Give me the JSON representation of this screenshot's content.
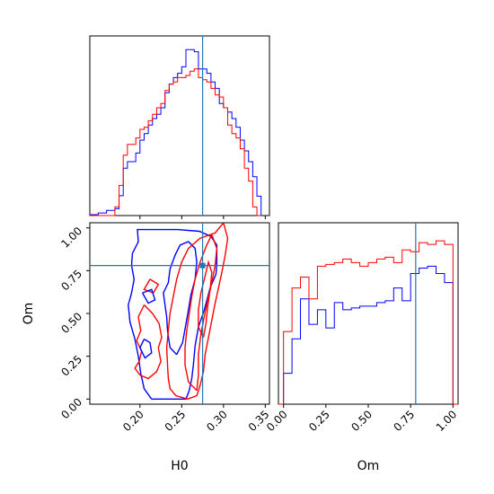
{
  "chart_data": {
    "type": "corner",
    "parameters": [
      "H0",
      "Om"
    ],
    "truth": {
      "H0": 0.275,
      "Om": 0.78
    },
    "colors": {
      "series_a": "#0000ff",
      "series_b": "#ff0000",
      "truth": "#1f77b4"
    },
    "panels": [
      {
        "id": "hist-h0",
        "type": "histogram",
        "xlim": [
          0.14,
          0.355
        ],
        "x_ticks": [
          0.2,
          0.25,
          0.3,
          0.35
        ],
        "tick_labels_shown": false,
        "bin_edges": [
          0.14,
          0.15,
          0.16,
          0.17,
          0.175,
          0.18,
          0.185,
          0.19,
          0.195,
          0.2,
          0.205,
          0.21,
          0.215,
          0.22,
          0.225,
          0.23,
          0.235,
          0.24,
          0.245,
          0.25,
          0.255,
          0.26,
          0.265,
          0.27,
          0.275,
          0.28,
          0.285,
          0.29,
          0.295,
          0.3,
          0.305,
          0.31,
          0.315,
          0.32,
          0.325,
          0.33,
          0.335,
          0.34,
          0.345
        ],
        "series": [
          {
            "color": "blue",
            "counts": [
              0.2,
              0.6,
              1.2,
              1.6,
              4.6,
              11.0,
              12.5,
              12.5,
              14.5,
              17.5,
              19.0,
              21.0,
              22.5,
              23.5,
              25.0,
              28.5,
              30.5,
              32.0,
              33.0,
              34.5,
              38.5,
              38.5,
              38.0,
              34.0,
              34.0,
              33.0,
              31.0,
              29.5,
              26.0,
              25.0,
              24.0,
              22.5,
              20.5,
              17.5,
              15.0,
              12.5,
              9.0,
              4.5
            ]
          },
          {
            "color": "red",
            "counts": [
              0.0,
              0.0,
              0.0,
              2.0,
              7.0,
              14.0,
              16.5,
              16.5,
              18.0,
              20.0,
              20.5,
              22.0,
              23.5,
              25.0,
              26.0,
              29.0,
              30.5,
              31.0,
              32.0,
              32.0,
              32.5,
              33.5,
              34.0,
              32.0,
              31.5,
              31.0,
              29.5,
              28.0,
              27.5,
              25.0,
              21.0,
              19.0,
              18.0,
              15.5,
              11.0,
              8.0,
              2.0,
              0.0
            ]
          }
        ]
      },
      {
        "id": "hist-om",
        "type": "histogram",
        "xlim": [
          -0.03,
          1.03
        ],
        "x_ticks": [
          0.0,
          0.25,
          0.5,
          0.75,
          1.0
        ],
        "tick_labels": [
          "0.00",
          "0.25",
          "0.50",
          "0.75",
          "1.00"
        ],
        "xlabel": "Om",
        "bin_edges": [
          -0.03,
          0.0,
          0.05,
          0.1,
          0.15,
          0.2,
          0.25,
          0.3,
          0.35,
          0.4,
          0.45,
          0.5,
          0.55,
          0.6,
          0.65,
          0.7,
          0.75,
          0.8,
          0.85,
          0.9,
          0.95,
          1.0,
          1.03
        ],
        "series": [
          {
            "color": "blue",
            "counts": [
              0.0,
              8.5,
              18.0,
              29.0,
              22.0,
              26.0,
              21.0,
              28.0,
              26.0,
              26.5,
              27.0,
              27.0,
              28.0,
              28.5,
              32.0,
              28.5,
              36.0,
              37.5,
              38.0,
              36.0,
              33.5,
              0.0
            ]
          },
          {
            "color": "red",
            "counts": [
              0.0,
              20.0,
              32.0,
              35.0,
              29.0,
              38.0,
              38.5,
              39.0,
              40.0,
              39.0,
              38.0,
              39.0,
              40.0,
              40.5,
              39.0,
              42.5,
              42.0,
              44.5,
              44.0,
              45.0,
              44.0,
              0.0
            ]
          }
        ]
      },
      {
        "id": "joint-h0-om",
        "type": "contour",
        "xlim": [
          0.14,
          0.355
        ],
        "ylim": [
          -0.03,
          1.03
        ],
        "x_ticks": [
          0.2,
          0.25,
          0.3,
          0.35
        ],
        "x_tick_labels": [
          "0.20",
          "0.25",
          "0.30",
          "0.35"
        ],
        "y_ticks": [
          0.0,
          0.25,
          0.5,
          0.75,
          1.0
        ],
        "y_tick_labels": [
          "0.00",
          "0.25",
          "0.50",
          "0.75",
          "1.00"
        ],
        "xlabel": "H0",
        "ylabel": "Om",
        "contours": [
          {
            "color": "blue",
            "level": "outer",
            "points": [
              [
                0.214,
                0.0
              ],
              [
                0.205,
                0.06
              ],
              [
                0.201,
                0.15
              ],
              [
                0.198,
                0.25
              ],
              [
                0.194,
                0.35
              ],
              [
                0.188,
                0.45
              ],
              [
                0.186,
                0.55
              ],
              [
                0.19,
                0.62
              ],
              [
                0.193,
                0.7
              ],
              [
                0.19,
                0.78
              ],
              [
                0.191,
                0.85
              ],
              [
                0.198,
                0.92
              ],
              [
                0.197,
                0.99
              ],
              [
                0.245,
                0.99
              ],
              [
                0.271,
                0.98
              ],
              [
                0.285,
                0.95
              ],
              [
                0.292,
                0.9
              ],
              [
                0.292,
                0.8
              ],
              [
                0.291,
                0.73
              ],
              [
                0.284,
                0.65
              ],
              [
                0.277,
                0.52
              ],
              [
                0.27,
                0.42
              ],
              [
                0.266,
                0.31
              ],
              [
                0.264,
                0.2
              ],
              [
                0.262,
                0.12
              ],
              [
                0.259,
                0.05
              ],
              [
                0.255,
                0.0
              ],
              [
                0.214,
                0.0
              ]
            ]
          },
          {
            "color": "blue",
            "level": "inner",
            "points": [
              [
                0.244,
                0.26
              ],
              [
                0.236,
                0.3
              ],
              [
                0.233,
                0.4
              ],
              [
                0.232,
                0.48
              ],
              [
                0.23,
                0.55
              ],
              [
                0.228,
                0.62
              ],
              [
                0.234,
                0.68
              ],
              [
                0.236,
                0.76
              ],
              [
                0.242,
                0.84
              ],
              [
                0.248,
                0.9
              ],
              [
                0.258,
                0.92
              ],
              [
                0.266,
                0.88
              ],
              [
                0.268,
                0.8
              ],
              [
                0.266,
                0.7
              ],
              [
                0.261,
                0.61
              ],
              [
                0.258,
                0.52
              ],
              [
                0.254,
                0.41
              ],
              [
                0.251,
                0.33
              ],
              [
                0.244,
                0.26
              ]
            ]
          },
          {
            "color": "red",
            "level": "outer",
            "points": [
              [
                0.257,
                0.0
              ],
              [
                0.243,
                0.02
              ],
              [
                0.236,
                0.06
              ],
              [
                0.234,
                0.12
              ],
              [
                0.233,
                0.2
              ],
              [
                0.232,
                0.3
              ],
              [
                0.234,
                0.4
              ],
              [
                0.236,
                0.5
              ],
              [
                0.24,
                0.6
              ],
              [
                0.244,
                0.7
              ],
              [
                0.25,
                0.8
              ],
              [
                0.258,
                0.88
              ],
              [
                0.272,
                0.94
              ],
              [
                0.29,
                0.97
              ],
              [
                0.3,
                1.03
              ],
              [
                0.305,
                0.94
              ],
              [
                0.302,
                0.84
              ],
              [
                0.298,
                0.74
              ],
              [
                0.294,
                0.65
              ],
              [
                0.29,
                0.56
              ],
              [
                0.286,
                0.46
              ],
              [
                0.282,
                0.36
              ],
              [
                0.278,
                0.26
              ],
              [
                0.276,
                0.16
              ],
              [
                0.272,
                0.08
              ],
              [
                0.268,
                0.02
              ],
              [
                0.257,
                0.0
              ]
            ]
          },
          {
            "color": "red",
            "level": "middle",
            "points": [
              [
                0.268,
                0.05
              ],
              [
                0.258,
                0.1
              ],
              [
                0.254,
                0.2
              ],
              [
                0.254,
                0.3
              ],
              [
                0.256,
                0.4
              ],
              [
                0.259,
                0.5
              ],
              [
                0.262,
                0.6
              ],
              [
                0.266,
                0.7
              ],
              [
                0.272,
                0.8
              ],
              [
                0.28,
                0.9
              ],
              [
                0.286,
                0.96
              ],
              [
                0.292,
                0.88
              ],
              [
                0.29,
                0.78
              ],
              [
                0.286,
                0.68
              ],
              [
                0.281,
                0.58
              ],
              [
                0.277,
                0.48
              ],
              [
                0.273,
                0.38
              ],
              [
                0.27,
                0.26
              ],
              [
                0.27,
                0.14
              ],
              [
                0.268,
                0.05
              ]
            ]
          },
          {
            "color": "red",
            "level": "inner",
            "points": [
              [
                0.276,
                0.36
              ],
              [
                0.27,
                0.42
              ],
              [
                0.27,
                0.52
              ],
              [
                0.273,
                0.62
              ],
              [
                0.278,
                0.72
              ],
              [
                0.282,
                0.8
              ],
              [
                0.286,
                0.74
              ],
              [
                0.284,
                0.64
              ],
              [
                0.281,
                0.54
              ],
              [
                0.279,
                0.44
              ],
              [
                0.276,
                0.36
              ]
            ]
          },
          {
            "color": "red",
            "level": "outer",
            "points": [
              [
                0.212,
                0.7
              ],
              [
                0.205,
                0.64
              ],
              [
                0.216,
                0.62
              ],
              [
                0.222,
                0.67
              ],
              [
                0.212,
                0.7
              ]
            ]
          },
          {
            "color": "red",
            "level": "outer",
            "points": [
              [
                0.205,
                0.55
              ],
              [
                0.198,
                0.48
              ],
              [
                0.201,
                0.4
              ],
              [
                0.196,
                0.34
              ],
              [
                0.202,
                0.28
              ],
              [
                0.199,
                0.22
              ],
              [
                0.194,
                0.18
              ],
              [
                0.2,
                0.14
              ],
              [
                0.21,
                0.12
              ],
              [
                0.22,
                0.16
              ],
              [
                0.225,
                0.22
              ],
              [
                0.222,
                0.3
              ],
              [
                0.226,
                0.36
              ],
              [
                0.223,
                0.44
              ],
              [
                0.215,
                0.5
              ],
              [
                0.205,
                0.55
              ]
            ]
          },
          {
            "color": "blue",
            "level": "inner",
            "points": [
              [
                0.203,
                0.62
              ],
              [
                0.21,
                0.56
              ],
              [
                0.218,
                0.58
              ],
              [
                0.214,
                0.64
              ],
              [
                0.203,
                0.62
              ]
            ]
          },
          {
            "color": "blue",
            "level": "inner",
            "points": [
              [
                0.205,
                0.35
              ],
              [
                0.2,
                0.3
              ],
              [
                0.206,
                0.24
              ],
              [
                0.214,
                0.27
              ],
              [
                0.212,
                0.33
              ],
              [
                0.205,
                0.35
              ]
            ]
          }
        ]
      }
    ]
  }
}
